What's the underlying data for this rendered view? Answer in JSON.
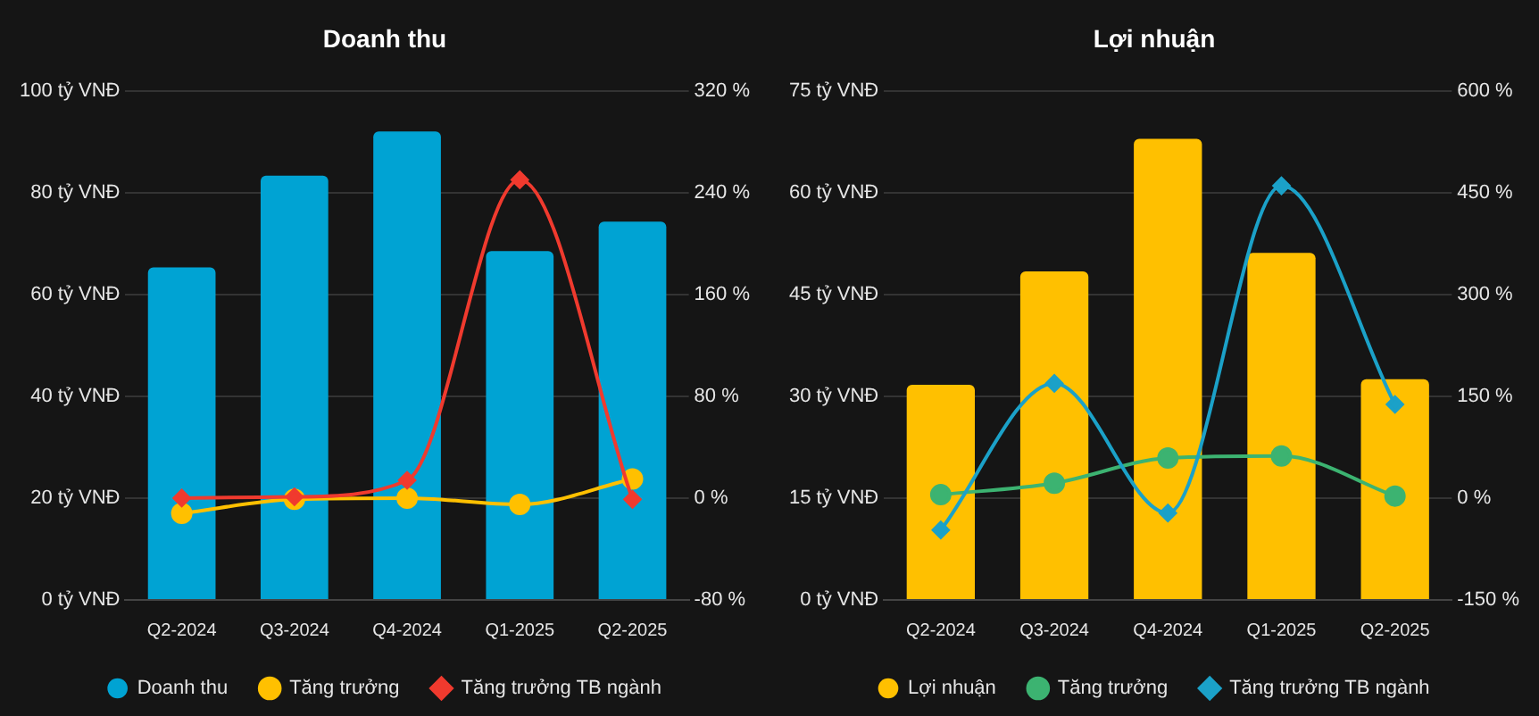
{
  "chart_data": [
    {
      "type": "bar",
      "title": "Doanh thu",
      "categories": [
        "Q2-2024",
        "Q3-2024",
        "Q4-2024",
        "Q1-2025",
        "Q2-2025"
      ],
      "series": [
        {
          "name": "Doanh thu",
          "color": "#00a3d3",
          "values": [
            65.3,
            83.3,
            92,
            68.5,
            74.3
          ]
        },
        {
          "name": "Tăng trưởng",
          "type": "line",
          "axis": "y2",
          "marker": "circle",
          "color": "#ffc000",
          "values": [
            -12,
            -1,
            0,
            -5,
            15
          ]
        },
        {
          "name": "Tăng trưởng TB ngành",
          "type": "line",
          "axis": "y2",
          "marker": "diamond",
          "color": "#f03a2e",
          "values": [
            0,
            1,
            14,
            250,
            -1
          ]
        }
      ],
      "ylim": [
        0,
        100
      ],
      "yticks": [
        {
          "value": 0,
          "label": "0 tỷ VNĐ"
        },
        {
          "value": 20,
          "label": "20 tỷ VNĐ"
        },
        {
          "value": 40,
          "label": "40 tỷ VNĐ"
        },
        {
          "value": 60,
          "label": "60 tỷ VNĐ"
        },
        {
          "value": 80,
          "label": "80 tỷ VNĐ"
        },
        {
          "value": 100,
          "label": "100 tỷ VNĐ"
        }
      ],
      "y2lim": [
        -80,
        320
      ],
      "y2ticks": [
        {
          "value": -80,
          "label": "-80 %"
        },
        {
          "value": 0,
          "label": "0 %"
        },
        {
          "value": 80,
          "label": "80 %"
        },
        {
          "value": 160,
          "label": "160 %"
        },
        {
          "value": 240,
          "label": "240 %"
        },
        {
          "value": 320,
          "label": "320 %"
        }
      ],
      "grid": "y",
      "legend": "bottom"
    },
    {
      "type": "bar",
      "title": "Lợi nhuận",
      "categories": [
        "Q2-2024",
        "Q3-2024",
        "Q4-2024",
        "Q1-2025",
        "Q2-2025"
      ],
      "series": [
        {
          "name": "Lợi nhuận",
          "color": "#ffc000",
          "values": [
            31.7,
            48.4,
            67.9,
            51.1,
            32.5
          ]
        },
        {
          "name": "Tăng trưởng",
          "type": "line",
          "axis": "y2",
          "marker": "circle",
          "color": "#3cb371",
          "values": [
            5,
            22,
            59,
            62,
            3
          ]
        },
        {
          "name": "Tăng trưởng TB ngành",
          "type": "line",
          "axis": "y2",
          "marker": "diamond",
          "color": "#1ba1c8",
          "values": [
            -47,
            169,
            -22,
            460,
            138
          ]
        }
      ],
      "ylim": [
        0,
        75
      ],
      "yticks": [
        {
          "value": 0,
          "label": "0 tỷ VNĐ"
        },
        {
          "value": 15,
          "label": "15 tỷ VNĐ"
        },
        {
          "value": 30,
          "label": "30 tỷ VNĐ"
        },
        {
          "value": 45,
          "label": "45 tỷ VNĐ"
        },
        {
          "value": 60,
          "label": "60 tỷ VNĐ"
        },
        {
          "value": 75,
          "label": "75 tỷ VNĐ"
        }
      ],
      "y2lim": [
        -150,
        600
      ],
      "y2ticks": [
        {
          "value": -150,
          "label": "-150 %"
        },
        {
          "value": 0,
          "label": "0 %"
        },
        {
          "value": 150,
          "label": "150 %"
        },
        {
          "value": 300,
          "label": "300 %"
        },
        {
          "value": 450,
          "label": "450 %"
        },
        {
          "value": 600,
          "label": "600 %"
        }
      ],
      "grid": "y",
      "legend": "bottom"
    }
  ]
}
